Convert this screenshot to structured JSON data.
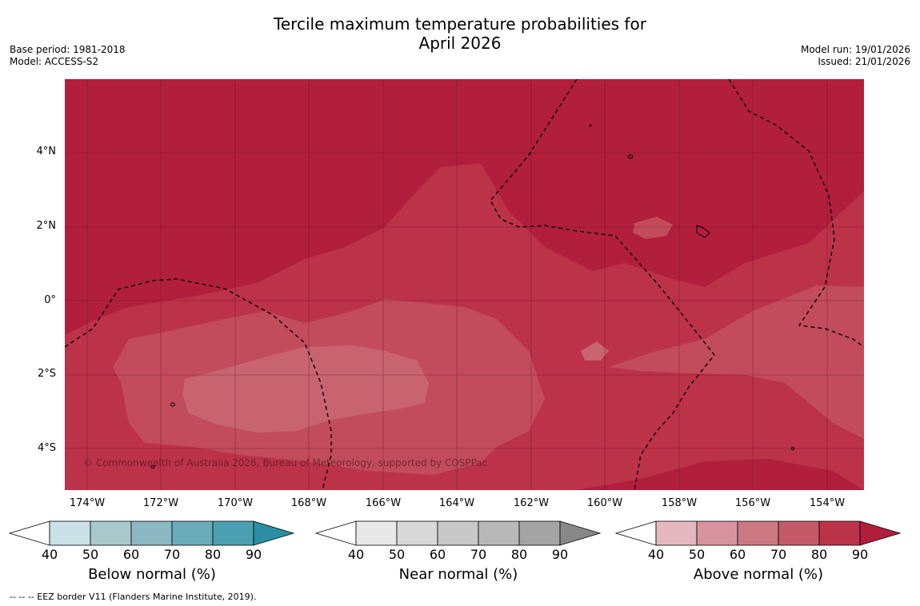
{
  "title": "Tercile maximum temperature probabilities for\nApril 2026",
  "title_line1": "Tercile maximum temperature probabilities for",
  "title_line2": "April 2026",
  "base_period": "Base period: 1981-2018",
  "model": "Model: ACCESS-S2",
  "model_run": "Model run: 19/01/2026",
  "issued": "Issued: 21/01/2026",
  "map": {
    "lat_labels": [
      "4°N",
      "2°N",
      "0°",
      "2°S",
      "4°S"
    ],
    "lon_labels": [
      "174°W",
      "172°W",
      "170°W",
      "168°W",
      "166°W",
      "164°W",
      "162°W",
      "160°W",
      "158°W",
      "156°W",
      "154°W"
    ],
    "watermark": "© Commonwealth of Australia 2026, Bureau of Meteorology, supported by COSPPac",
    "colors": {
      "above_80_90": "#b11f3c",
      "above_70_80": "#bc3249",
      "above_60_70": "#c24c5b",
      "above_50_60": "#c86470"
    }
  },
  "colorbars": [
    {
      "title": "Below normal (%)",
      "ticks": [
        "40",
        "50",
        "60",
        "70",
        "80",
        "90"
      ],
      "colors": [
        "#ffffff",
        "#c8e0e6",
        "#a8c8cc",
        "#8cb8c4",
        "#6aacba",
        "#4aa0b0",
        "#2a8ea4"
      ]
    },
    {
      "title": "Near normal (%)",
      "ticks": [
        "40",
        "50",
        "60",
        "70",
        "80",
        "90"
      ],
      "colors": [
        "#ffffff",
        "#e8e8e8",
        "#d8d8d8",
        "#c8c8c8",
        "#b8b8b8",
        "#a4a4a4",
        "#888888"
      ]
    },
    {
      "title": "Above normal (%)",
      "ticks": [
        "40",
        "50",
        "60",
        "70",
        "80",
        "90"
      ],
      "colors": [
        "#ffffff",
        "#e4b8be",
        "#d8949e",
        "#cc7882",
        "#c45a68",
        "#bc3249",
        "#b11f3c"
      ]
    }
  ],
  "footer": "--  --  -- EEZ border V11 (Flanders Marine Institute, 2019)."
}
